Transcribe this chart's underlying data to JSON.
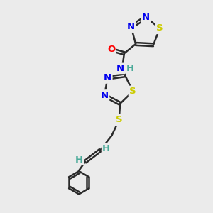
{
  "bg_color": "#ebebeb",
  "bond_color": "#2a2a2a",
  "bond_width": 1.8,
  "dbo": 0.055,
  "atom_colors": {
    "N": "#0000ee",
    "S": "#cccc00",
    "O": "#ff0000",
    "H": "#4aaa99",
    "C": "#2a2a2a"
  },
  "fs": 9.5
}
